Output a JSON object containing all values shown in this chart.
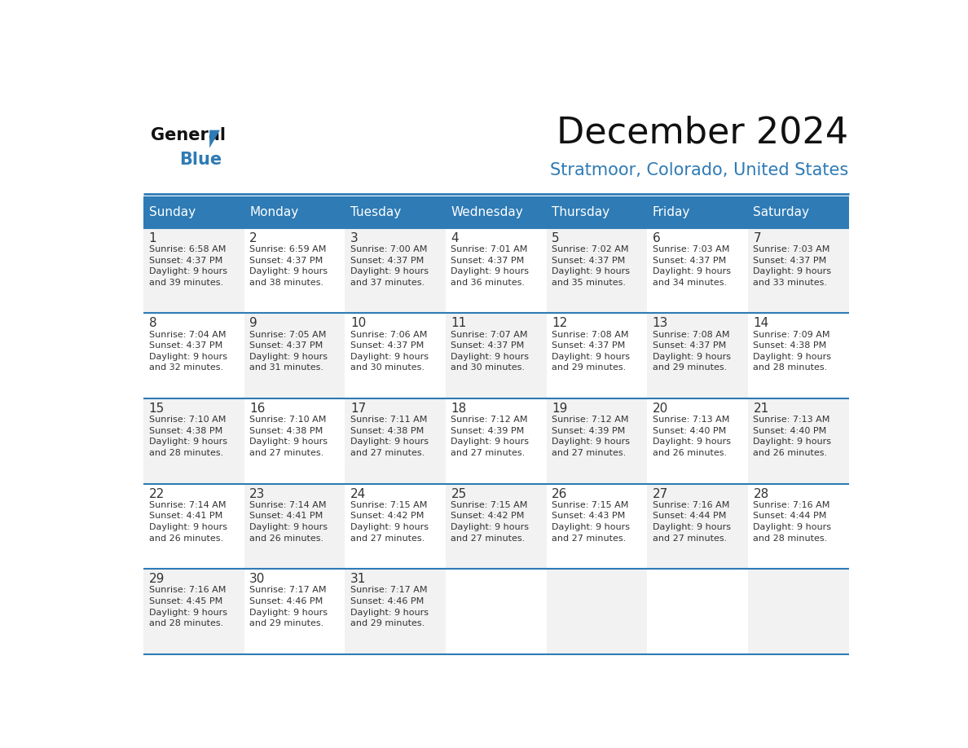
{
  "title": "December 2024",
  "subtitle": "Stratmoor, Colorado, United States",
  "header_bg_color": "#2E7BB5",
  "header_text_color": "#FFFFFF",
  "cell_bg_color_light": "#F2F2F2",
  "cell_bg_color_white": "#FFFFFF",
  "cell_text_color": "#333333",
  "grid_line_color": "#2E7BB5",
  "days_of_week": [
    "Sunday",
    "Monday",
    "Tuesday",
    "Wednesday",
    "Thursday",
    "Friday",
    "Saturday"
  ],
  "logo_text1": "General",
  "logo_text2": "Blue",
  "calendar_data": [
    [
      {
        "day": 1,
        "sunrise": "6:58 AM",
        "sunset": "4:37 PM",
        "daylight": "9 hours\nand 39 minutes."
      },
      {
        "day": 2,
        "sunrise": "6:59 AM",
        "sunset": "4:37 PM",
        "daylight": "9 hours\nand 38 minutes."
      },
      {
        "day": 3,
        "sunrise": "7:00 AM",
        "sunset": "4:37 PM",
        "daylight": "9 hours\nand 37 minutes."
      },
      {
        "day": 4,
        "sunrise": "7:01 AM",
        "sunset": "4:37 PM",
        "daylight": "9 hours\nand 36 minutes."
      },
      {
        "day": 5,
        "sunrise": "7:02 AM",
        "sunset": "4:37 PM",
        "daylight": "9 hours\nand 35 minutes."
      },
      {
        "day": 6,
        "sunrise": "7:03 AM",
        "sunset": "4:37 PM",
        "daylight": "9 hours\nand 34 minutes."
      },
      {
        "day": 7,
        "sunrise": "7:03 AM",
        "sunset": "4:37 PM",
        "daylight": "9 hours\nand 33 minutes."
      }
    ],
    [
      {
        "day": 8,
        "sunrise": "7:04 AM",
        "sunset": "4:37 PM",
        "daylight": "9 hours\nand 32 minutes."
      },
      {
        "day": 9,
        "sunrise": "7:05 AM",
        "sunset": "4:37 PM",
        "daylight": "9 hours\nand 31 minutes."
      },
      {
        "day": 10,
        "sunrise": "7:06 AM",
        "sunset": "4:37 PM",
        "daylight": "9 hours\nand 30 minutes."
      },
      {
        "day": 11,
        "sunrise": "7:07 AM",
        "sunset": "4:37 PM",
        "daylight": "9 hours\nand 30 minutes."
      },
      {
        "day": 12,
        "sunrise": "7:08 AM",
        "sunset": "4:37 PM",
        "daylight": "9 hours\nand 29 minutes."
      },
      {
        "day": 13,
        "sunrise": "7:08 AM",
        "sunset": "4:37 PM",
        "daylight": "9 hours\nand 29 minutes."
      },
      {
        "day": 14,
        "sunrise": "7:09 AM",
        "sunset": "4:38 PM",
        "daylight": "9 hours\nand 28 minutes."
      }
    ],
    [
      {
        "day": 15,
        "sunrise": "7:10 AM",
        "sunset": "4:38 PM",
        "daylight": "9 hours\nand 28 minutes."
      },
      {
        "day": 16,
        "sunrise": "7:10 AM",
        "sunset": "4:38 PM",
        "daylight": "9 hours\nand 27 minutes."
      },
      {
        "day": 17,
        "sunrise": "7:11 AM",
        "sunset": "4:38 PM",
        "daylight": "9 hours\nand 27 minutes."
      },
      {
        "day": 18,
        "sunrise": "7:12 AM",
        "sunset": "4:39 PM",
        "daylight": "9 hours\nand 27 minutes."
      },
      {
        "day": 19,
        "sunrise": "7:12 AM",
        "sunset": "4:39 PM",
        "daylight": "9 hours\nand 27 minutes."
      },
      {
        "day": 20,
        "sunrise": "7:13 AM",
        "sunset": "4:40 PM",
        "daylight": "9 hours\nand 26 minutes."
      },
      {
        "day": 21,
        "sunrise": "7:13 AM",
        "sunset": "4:40 PM",
        "daylight": "9 hours\nand 26 minutes."
      }
    ],
    [
      {
        "day": 22,
        "sunrise": "7:14 AM",
        "sunset": "4:41 PM",
        "daylight": "9 hours\nand 26 minutes."
      },
      {
        "day": 23,
        "sunrise": "7:14 AM",
        "sunset": "4:41 PM",
        "daylight": "9 hours\nand 26 minutes."
      },
      {
        "day": 24,
        "sunrise": "7:15 AM",
        "sunset": "4:42 PM",
        "daylight": "9 hours\nand 27 minutes."
      },
      {
        "day": 25,
        "sunrise": "7:15 AM",
        "sunset": "4:42 PM",
        "daylight": "9 hours\nand 27 minutes."
      },
      {
        "day": 26,
        "sunrise": "7:15 AM",
        "sunset": "4:43 PM",
        "daylight": "9 hours\nand 27 minutes."
      },
      {
        "day": 27,
        "sunrise": "7:16 AM",
        "sunset": "4:44 PM",
        "daylight": "9 hours\nand 27 minutes."
      },
      {
        "day": 28,
        "sunrise": "7:16 AM",
        "sunset": "4:44 PM",
        "daylight": "9 hours\nand 28 minutes."
      }
    ],
    [
      {
        "day": 29,
        "sunrise": "7:16 AM",
        "sunset": "4:45 PM",
        "daylight": "9 hours\nand 28 minutes."
      },
      {
        "day": 30,
        "sunrise": "7:17 AM",
        "sunset": "4:46 PM",
        "daylight": "9 hours\nand 29 minutes."
      },
      {
        "day": 31,
        "sunrise": "7:17 AM",
        "sunset": "4:46 PM",
        "daylight": "9 hours\nand 29 minutes."
      },
      null,
      null,
      null,
      null
    ]
  ]
}
